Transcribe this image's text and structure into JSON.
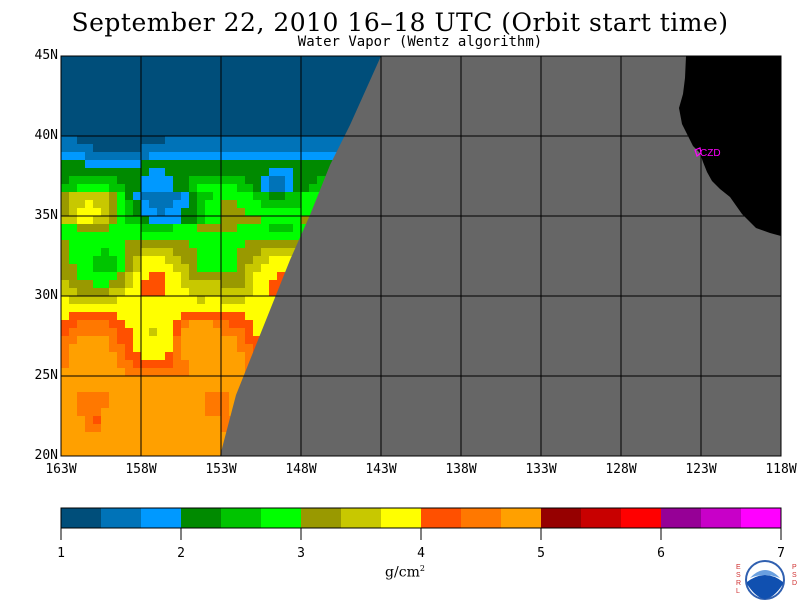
{
  "title": "September 22, 2010  16–18 UTC  (Orbit start time)",
  "subtitle": "Water Vapor (Wentz algorithm)",
  "chart_data": {
    "type": "heatmap",
    "x_ticks": [
      "163W",
      "158W",
      "153W",
      "148W",
      "143W",
      "138W",
      "133W",
      "128W",
      "123W",
      "118W"
    ],
    "y_ticks": [
      "45N",
      "40N",
      "35N",
      "30N",
      "25N",
      "20N"
    ],
    "xlim": [
      -163,
      -118
    ],
    "ylim": [
      20,
      45
    ],
    "grid": true,
    "site_label": "CZD",
    "colorbar": {
      "ticks": [
        "1",
        "2",
        "3",
        "4",
        "5",
        "6",
        "7"
      ],
      "range": [
        1,
        7
      ],
      "units_base": "g/cm",
      "units_exp": "2",
      "colors": [
        "#004e7a",
        "#0073b8",
        "#0099ff",
        "#008a00",
        "#00c400",
        "#00ff00",
        "#999900",
        "#c8c800",
        "#ffff00",
        "#ff5000",
        "#ff7800",
        "#ffa000",
        "#960000",
        "#c80000",
        "#ff0000",
        "#960096",
        "#c800c8",
        "#ff00ff"
      ]
    },
    "colors": {
      "nodata": "#666666",
      "land": "#000000",
      "site": "#ff00ff"
    }
  },
  "logo": {
    "left": [
      "E",
      "S",
      "R",
      "L"
    ],
    "right": [
      "P",
      "S",
      "D"
    ],
    "name": "NOAA"
  }
}
